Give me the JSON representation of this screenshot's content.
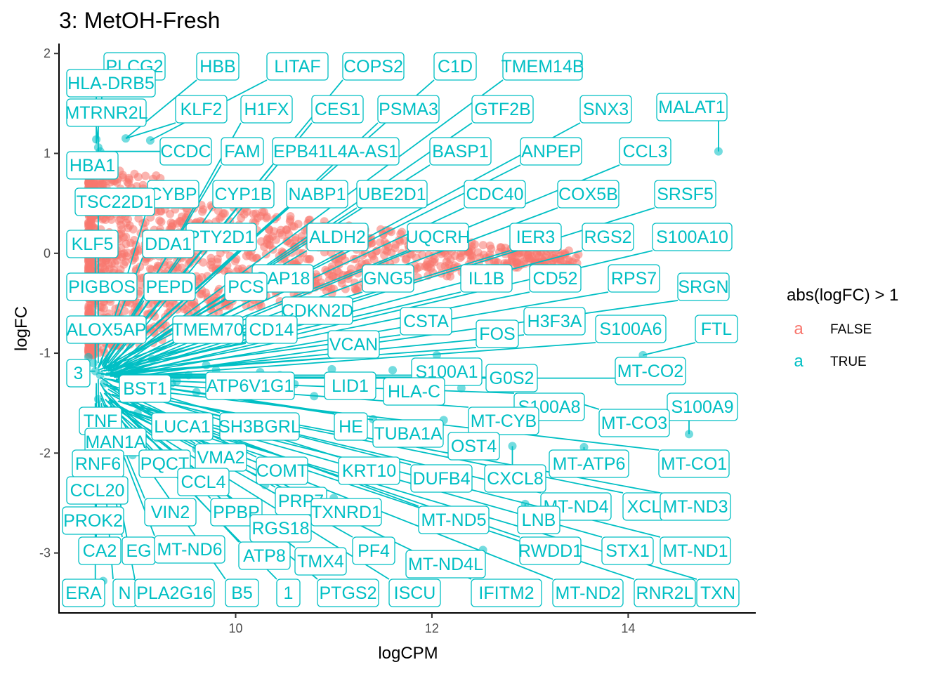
{
  "chart_data": {
    "type": "scatter",
    "title": "3: MetOH-Fresh",
    "xlabel": "logCPM",
    "ylabel": "logFC",
    "xlim": [
      8.2,
      15.3
    ],
    "ylim": [
      -3.6,
      2.1
    ],
    "x_ticks": [
      10,
      12,
      14
    ],
    "y_ticks": [
      2,
      1,
      0,
      -1,
      -2,
      -3
    ],
    "x_tick_labels": [
      "10",
      "12",
      "14"
    ],
    "y_tick_labels": [
      "2",
      "1",
      "0",
      "-1",
      "-2",
      "-3"
    ],
    "legend": {
      "title": "abs(logFC) > 1",
      "entries": [
        {
          "glyph": "a",
          "label": "FALSE",
          "color": "#F8766D"
        },
        {
          "glyph": "a",
          "label": "TRUE",
          "color": "#00BFC4"
        }
      ]
    },
    "colors": {
      "false": "#F8766D",
      "true": "#00BFC4"
    },
    "points_true": [
      [
        14.92,
        1.02
      ],
      [
        14.15,
        -1.02
      ],
      [
        14.62,
        -1.81
      ],
      [
        13.55,
        -1.94
      ],
      [
        13.37,
        -1.46
      ],
      [
        12.82,
        -1.93
      ],
      [
        12.12,
        -1.67
      ],
      [
        12.65,
        -1.58
      ],
      [
        12.05,
        -1.02
      ],
      [
        12.52,
        -2.97
      ],
      [
        12.95,
        -2.51
      ],
      [
        11.4,
        -1.66
      ],
      [
        10.98,
        -1.16
      ],
      [
        10.6,
        -1.31
      ],
      [
        10.25,
        -1.19
      ],
      [
        10.0,
        -1.24
      ],
      [
        9.8,
        -1.17
      ],
      [
        9.6,
        -1.39
      ],
      [
        9.4,
        -1.28
      ],
      [
        9.15,
        -1.06
      ],
      [
        8.88,
        1.15
      ],
      [
        9.13,
        1.13
      ],
      [
        8.6,
        1.06
      ],
      [
        8.58,
        1.14
      ],
      [
        8.62,
        1.02
      ],
      [
        8.5,
        -1.04
      ],
      [
        8.55,
        -1.1
      ],
      [
        8.57,
        -1.18
      ],
      [
        8.62,
        -1.22
      ],
      [
        8.66,
        -1.3
      ],
      [
        8.6,
        -1.46
      ],
      [
        8.65,
        -1.58
      ],
      [
        8.7,
        -1.75
      ],
      [
        8.72,
        -1.93
      ],
      [
        8.55,
        -2.4
      ],
      [
        8.6,
        -2.02
      ],
      [
        8.58,
        -2.21
      ],
      [
        8.57,
        -2.66
      ],
      [
        8.6,
        -3.02
      ],
      [
        8.65,
        -3.28
      ],
      [
        8.8,
        -1.15
      ],
      [
        8.95,
        -1.2
      ],
      [
        9.05,
        -1.33
      ],
      [
        9.25,
        -1.45
      ],
      [
        9.35,
        -1.3
      ],
      [
        9.52,
        -1.22
      ],
      [
        9.7,
        -1.12
      ],
      [
        9.9,
        -1.3
      ],
      [
        10.15,
        -1.36
      ],
      [
        10.45,
        -1.22
      ],
      [
        10.8,
        -1.43
      ],
      [
        11.1,
        -1.3
      ],
      [
        11.6,
        -1.17
      ],
      [
        12.3,
        -1.35
      ],
      [
        9.0,
        -1.6
      ],
      [
        9.2,
        -1.85
      ],
      [
        8.95,
        -2.02
      ],
      [
        9.6,
        -1.96
      ],
      [
        10.3,
        -2.32
      ],
      [
        11.0,
        -2.45
      ]
    ],
    "labels": [
      {
        "text": "PLCG2",
        "x": 8.58,
        "y": 1.1
      },
      {
        "text": "HBB",
        "x": 8.88,
        "y": 1.15
      },
      {
        "text": "LITAF",
        "x": 9.13,
        "y": 1.13
      },
      {
        "text": "COPS2",
        "x": 8.7,
        "y": -1.1
      },
      {
        "text": "C1D",
        "x": 8.72,
        "y": -1.12
      },
      {
        "text": "TMEM14B",
        "x": 8.75,
        "y": -1.15
      },
      {
        "text": "HLA-DRB5",
        "x": 8.58,
        "y": 1.1
      },
      {
        "text": "MTRNR2L",
        "x": 8.6,
        "y": 1.02
      },
      {
        "text": "KLF2",
        "x": 8.88,
        "y": 1.15
      },
      {
        "text": "H1FX",
        "x": 8.66,
        "y": -1.15
      },
      {
        "text": "CES1",
        "x": 8.7,
        "y": -1.18
      },
      {
        "text": "PSMA3",
        "x": 8.72,
        "y": -1.2
      },
      {
        "text": "GTF2B",
        "x": 8.75,
        "y": -1.18
      },
      {
        "text": "SNX3",
        "x": 8.78,
        "y": -1.2
      },
      {
        "text": "MALAT1",
        "x": 14.92,
        "y": 1.02
      },
      {
        "text": "CCDC",
        "x": 8.62,
        "y": 1.02
      },
      {
        "text": "FAM",
        "x": 8.64,
        "y": -1.12
      },
      {
        "text": "EPB41L4A-AS1",
        "x": 8.68,
        "y": -1.15
      },
      {
        "text": "BASP1",
        "x": 8.7,
        "y": -1.16
      },
      {
        "text": "ANPEP",
        "x": 8.72,
        "y": -1.18
      },
      {
        "text": "CCL3",
        "x": 8.76,
        "y": -1.2
      },
      {
        "text": "HBA1",
        "x": 8.6,
        "y": 1.06
      },
      {
        "text": "CYBP",
        "x": 8.62,
        "y": -1.12
      },
      {
        "text": "CYP1B",
        "x": 8.65,
        "y": -1.14
      },
      {
        "text": "NABP1",
        "x": 8.68,
        "y": -1.15
      },
      {
        "text": "UBE2D1",
        "x": 8.7,
        "y": -1.17
      },
      {
        "text": "CDC40",
        "x": 8.73,
        "y": -1.19
      },
      {
        "text": "COX5B",
        "x": 8.76,
        "y": -1.21
      },
      {
        "text": "SRSF5",
        "x": 8.8,
        "y": -1.22
      },
      {
        "text": "TSC22D1",
        "x": 8.6,
        "y": -1.1
      },
      {
        "text": "PTY2D1",
        "x": 8.64,
        "y": -1.13
      },
      {
        "text": "ALDH2",
        "x": 8.68,
        "y": -1.16
      },
      {
        "text": "UQCRH",
        "x": 8.71,
        "y": -1.18
      },
      {
        "text": "IER3",
        "x": 8.74,
        "y": -1.2
      },
      {
        "text": "RGS2",
        "x": 8.77,
        "y": -1.21
      },
      {
        "text": "S100A10",
        "x": 8.8,
        "y": -1.23
      },
      {
        "text": "KLF5",
        "x": 8.57,
        "y": -1.12
      },
      {
        "text": "DDA1",
        "x": 8.6,
        "y": -1.14
      },
      {
        "text": "SAP18",
        "x": 8.66,
        "y": -1.16
      },
      {
        "text": "GNG5",
        "x": 8.7,
        "y": -1.18
      },
      {
        "text": "IL1B",
        "x": 8.73,
        "y": -1.2
      },
      {
        "text": "CD52",
        "x": 8.76,
        "y": -1.22
      },
      {
        "text": "RPS7",
        "x": 8.79,
        "y": -1.23
      },
      {
        "text": "PIGBOS",
        "x": 8.57,
        "y": -1.14
      },
      {
        "text": "PEPD",
        "x": 8.6,
        "y": -1.15
      },
      {
        "text": "PCS",
        "x": 8.63,
        "y": -1.16
      },
      {
        "text": "SRGN",
        "x": 8.82,
        "y": -1.25
      },
      {
        "text": "CDKN2D",
        "x": 8.66,
        "y": -1.18
      },
      {
        "text": "CSTA",
        "x": 8.72,
        "y": -1.2
      },
      {
        "text": "H3F3A",
        "x": 8.76,
        "y": -1.22
      },
      {
        "text": "S100A6",
        "x": 8.8,
        "y": -1.24
      },
      {
        "text": "FTL",
        "x": 14.15,
        "y": -1.02
      },
      {
        "text": "ALOX5AP",
        "x": 8.57,
        "y": -1.16
      },
      {
        "text": "TMEM70",
        "x": 8.6,
        "y": -1.17
      },
      {
        "text": "CD14",
        "x": 8.63,
        "y": -1.18
      },
      {
        "text": "VCAN",
        "x": 8.68,
        "y": -1.2
      },
      {
        "text": "FOS",
        "x": 8.73,
        "y": -1.21
      },
      {
        "text": "3",
        "x": 8.57,
        "y": -1.18
      },
      {
        "text": "S100A1",
        "x": 8.72,
        "y": -1.22
      },
      {
        "text": "MT-CO2",
        "x": 8.8,
        "y": -1.25
      },
      {
        "text": "G0S2",
        "x": 8.76,
        "y": -1.24
      },
      {
        "text": "BST1",
        "x": 8.6,
        "y": -1.2
      },
      {
        "text": "ATP6V1G1",
        "x": 8.63,
        "y": -1.21
      },
      {
        "text": "LID1",
        "x": 8.67,
        "y": -1.22
      },
      {
        "text": "HLA-C",
        "x": 8.72,
        "y": -1.23
      },
      {
        "text": "S100A8",
        "x": 8.78,
        "y": -1.26
      },
      {
        "text": "S100A9",
        "x": 14.62,
        "y": -1.81
      },
      {
        "text": "MT-CO3",
        "x": 13.37,
        "y": -1.46
      },
      {
        "text": "TNF",
        "x": 8.6,
        "y": -1.46
      },
      {
        "text": "LUCA1",
        "x": 8.62,
        "y": -1.24
      },
      {
        "text": "SH3BGRL",
        "x": 8.66,
        "y": -1.25
      },
      {
        "text": "HE",
        "x": 8.7,
        "y": -1.26
      },
      {
        "text": "TUBA1A",
        "x": 8.74,
        "y": -1.27
      },
      {
        "text": "MT-CYB",
        "x": 8.78,
        "y": -1.28
      },
      {
        "text": "MAN1A",
        "x": 8.6,
        "y": -1.26
      },
      {
        "text": "OST4",
        "x": 12.65,
        "y": -1.58
      },
      {
        "text": "RNF6",
        "x": 8.58,
        "y": -1.3
      },
      {
        "text": "PQCT",
        "x": 8.62,
        "y": -1.3
      },
      {
        "text": "VMA2",
        "x": 8.65,
        "y": -1.3
      },
      {
        "text": "COMT",
        "x": 8.68,
        "y": -1.31
      },
      {
        "text": "KRT10",
        "x": 8.72,
        "y": -1.32
      },
      {
        "text": "MT-ATP6",
        "x": 13.55,
        "y": -1.94
      },
      {
        "text": "MT-CO1",
        "x": 8.82,
        "y": -1.34
      },
      {
        "text": "CCL20",
        "x": 8.58,
        "y": -1.34
      },
      {
        "text": "CCL4",
        "x": 8.64,
        "y": -1.34
      },
      {
        "text": "DUFB4",
        "x": 8.72,
        "y": -1.35
      },
      {
        "text": "CXCL8",
        "x": 12.82,
        "y": -1.93
      },
      {
        "text": "PRP7",
        "x": 8.7,
        "y": -1.36
      },
      {
        "text": "MT-ND4",
        "x": 8.8,
        "y": -1.38
      },
      {
        "text": "XCL",
        "x": 8.84,
        "y": -1.38
      },
      {
        "text": "MT-ND3",
        "x": 8.86,
        "y": -1.39
      },
      {
        "text": "PROK2",
        "x": 8.58,
        "y": -1.38
      },
      {
        "text": "VIN2",
        "x": 8.62,
        "y": -1.39
      },
      {
        "text": "PPBP",
        "x": 8.66,
        "y": -1.4
      },
      {
        "text": "TXNRD1",
        "x": 8.7,
        "y": -1.4
      },
      {
        "text": "MT-ND5",
        "x": 8.74,
        "y": -1.41
      },
      {
        "text": "LNB",
        "x": 12.95,
        "y": -2.51
      },
      {
        "text": "RGS18",
        "x": 8.68,
        "y": -1.42
      },
      {
        "text": "CA2",
        "x": 8.58,
        "y": -1.44
      },
      {
        "text": "EG",
        "x": 8.6,
        "y": -1.45
      },
      {
        "text": "MT-ND6",
        "x": 8.63,
        "y": -1.45
      },
      {
        "text": "ATP8",
        "x": 8.67,
        "y": -1.46
      },
      {
        "text": "PF4",
        "x": 8.71,
        "y": -1.47
      },
      {
        "text": "RWDD1",
        "x": 8.8,
        "y": -1.48
      },
      {
        "text": "STX1",
        "x": 8.84,
        "y": -1.49
      },
      {
        "text": "MT-ND1",
        "x": 8.88,
        "y": -1.5
      },
      {
        "text": "TMX4",
        "x": 8.7,
        "y": -1.48
      },
      {
        "text": "MT-ND4L",
        "x": 12.52,
        "y": -2.97
      },
      {
        "text": "ERA",
        "x": 8.57,
        "y": -1.5
      },
      {
        "text": "N",
        "x": 8.6,
        "y": -1.5
      },
      {
        "text": "PLA2G16",
        "x": 8.63,
        "y": -1.5
      },
      {
        "text": "B5",
        "x": 8.66,
        "y": -1.52
      },
      {
        "text": "1",
        "x": 8.68,
        "y": -1.52
      },
      {
        "text": "PTGS2",
        "x": 8.72,
        "y": -1.53
      },
      {
        "text": "ISCU",
        "x": 8.75,
        "y": -1.54
      },
      {
        "text": "IFITM2",
        "x": 8.8,
        "y": -1.55
      },
      {
        "text": "MT-ND2",
        "x": 8.84,
        "y": -1.56
      },
      {
        "text": "RNR2L",
        "x": 8.88,
        "y": -1.57
      },
      {
        "text": "TXN",
        "x": 8.92,
        "y": -1.58
      }
    ]
  }
}
